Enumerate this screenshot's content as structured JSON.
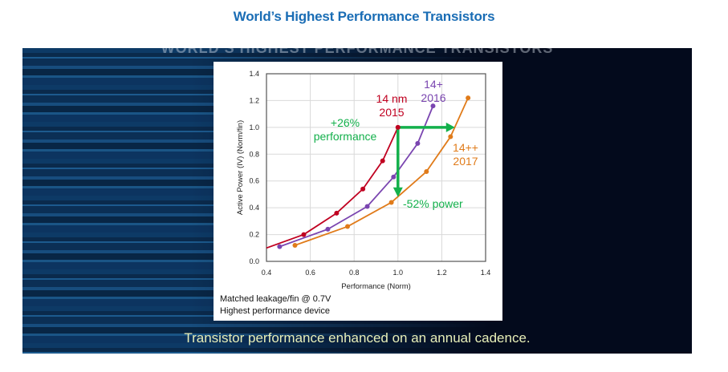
{
  "page": {
    "title": "World’s Highest Performance Transistors"
  },
  "slide": {
    "ghost_title": "WORLD’S HIGHEST PERFORMANCE TRANSISTORS",
    "caption": "Transistor performance enhanced on an annual cadence.",
    "notes": [
      "Matched leakage/fin @ 0.7V",
      "Highest performance device"
    ],
    "colors": {
      "14nm_2015": "#c00020",
      "14plus_2016": "#7a45b0",
      "14plusplus_2017": "#e07b1a",
      "annotation": "#13b04b",
      "title": "#1a6db5",
      "caption": "#e8efb8"
    }
  },
  "chart_data": {
    "type": "line",
    "title": "",
    "xlabel": "Performance (Norm)",
    "ylabel": "Active Power (IV) (Norm/fin)",
    "xlim": [
      0.4,
      1.4
    ],
    "ylim": [
      0.0,
      1.4
    ],
    "xticks": [
      "0.4",
      "0.6",
      "0.8",
      "1.0",
      "1.2",
      "1.4"
    ],
    "yticks": [
      "0.0",
      "0.2",
      "0.4",
      "0.6",
      "0.8",
      "1.0",
      "1.2",
      "1.4"
    ],
    "grid": true,
    "legend_position": "inline labels",
    "series": [
      {
        "name": "14 nm 2015",
        "label_lines": [
          "14 nm",
          "2015"
        ],
        "color": "#c00020",
        "x": [
          0.4,
          0.57,
          0.72,
          0.84,
          0.93,
          1.0
        ],
        "y": [
          0.1,
          0.2,
          0.36,
          0.54,
          0.75,
          1.0
        ]
      },
      {
        "name": "14+ 2016",
        "label_lines": [
          "14+",
          "2016"
        ],
        "color": "#7a45b0",
        "x": [
          0.46,
          0.68,
          0.86,
          0.98,
          1.09,
          1.16
        ],
        "y": [
          0.11,
          0.24,
          0.41,
          0.63,
          0.88,
          1.16
        ]
      },
      {
        "name": "14++ 2017",
        "label_lines": [
          "14++",
          "2017"
        ],
        "color": "#e07b1a",
        "x": [
          0.53,
          0.77,
          0.97,
          1.13,
          1.24,
          1.32
        ],
        "y": [
          0.12,
          0.26,
          0.44,
          0.67,
          0.93,
          1.22
        ]
      }
    ],
    "annotations": [
      {
        "text_lines": [
          "+26%",
          "performance"
        ],
        "type": "arrow-right",
        "from": [
          1.0,
          1.0
        ],
        "to": [
          1.26,
          1.0
        ]
      },
      {
        "text_lines": [
          "-52% power"
        ],
        "type": "arrow-down",
        "from": [
          1.0,
          1.0
        ],
        "to": [
          1.0,
          0.48
        ]
      }
    ]
  }
}
